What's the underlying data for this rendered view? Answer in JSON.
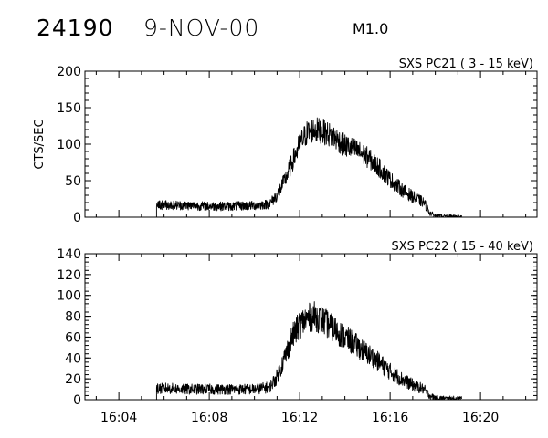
{
  "header": {
    "event_number": "24190",
    "date": "9-NOV-00",
    "flare_class": "M1.0"
  },
  "chart_data": [
    {
      "type": "line",
      "title": "SXS PC21  (  3 - 15 keV)",
      "ylabel": "CTS/SEC",
      "xlabel": "",
      "xlim": [
        "16:02:30",
        "16:22:30"
      ],
      "ylim": [
        0,
        200
      ],
      "yticks": [
        0,
        50,
        100,
        150,
        200
      ],
      "grid": false,
      "series": [
        {
          "x": [
            "16:05:40",
            "16:06:00",
            "16:07:00",
            "16:08:00",
            "16:09:00",
            "16:10:00",
            "16:10:40",
            "16:11:00",
            "16:11:20",
            "16:11:40",
            "16:12:00",
            "16:12:20",
            "16:12:40",
            "16:13:00",
            "16:13:30",
            "16:14:00",
            "16:14:30",
            "16:15:00",
            "16:15:30",
            "16:16:00",
            "16:16:30",
            "16:17:00",
            "16:17:30",
            "16:17:45",
            "16:18:00",
            "16:18:30",
            "16:19:00",
            "16:19:10"
          ],
          "values": [
            16,
            17,
            16,
            15,
            15,
            16,
            18,
            30,
            50,
            75,
            100,
            116,
            120,
            118,
            110,
            98,
            92,
            82,
            68,
            52,
            38,
            28,
            20,
            6,
            2,
            1,
            1,
            1
          ]
        }
      ]
    },
    {
      "type": "line",
      "title": "SXS PC22  ( 15 - 40 keV)",
      "ylabel": "",
      "xlabel": "",
      "xlim": [
        "16:02:30",
        "16:22:30"
      ],
      "ylim": [
        0,
        140
      ],
      "yticks": [
        0,
        20,
        40,
        60,
        80,
        100,
        120,
        140
      ],
      "xticks": [
        "16:04",
        "16:08",
        "16:12",
        "16:16",
        "16:20"
      ],
      "grid": false,
      "series": [
        {
          "x": [
            "16:05:40",
            "16:06:00",
            "16:07:00",
            "16:08:00",
            "16:09:00",
            "16:10:00",
            "16:10:40",
            "16:11:00",
            "16:11:20",
            "16:11:40",
            "16:12:00",
            "16:12:20",
            "16:12:40",
            "16:13:00",
            "16:13:30",
            "16:14:00",
            "16:14:30",
            "16:15:00",
            "16:15:30",
            "16:16:00",
            "16:16:30",
            "16:17:00",
            "16:17:30",
            "16:17:45",
            "16:18:00",
            "16:18:30",
            "16:19:00",
            "16:19:10"
          ],
          "values": [
            10,
            11,
            10,
            10,
            10,
            10,
            12,
            22,
            40,
            60,
            72,
            78,
            80,
            76,
            68,
            60,
            52,
            44,
            36,
            27,
            20,
            14,
            10,
            4,
            2,
            1,
            1,
            1
          ]
        }
      ]
    }
  ]
}
